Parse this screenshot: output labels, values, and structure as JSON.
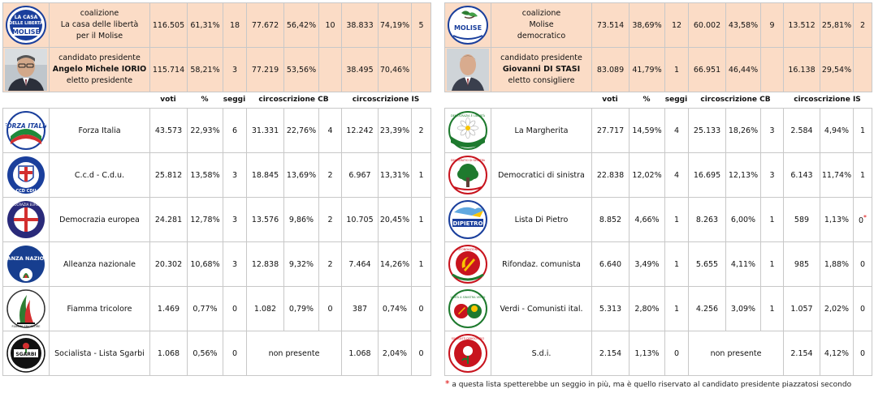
{
  "left": {
    "coalition": {
      "lines": [
        "coalizione",
        "La casa delle libertà",
        "per il Molise"
      ],
      "logo_text": [
        "LA CASA",
        "DELLE LIBERTÀ",
        "MOLISE"
      ],
      "values": [
        "116.505",
        "61,31%",
        "18",
        "77.672",
        "56,42%",
        "10",
        "38.833",
        "74,19%",
        "5"
      ]
    },
    "candidate": {
      "lines": [
        "candidato presidente",
        "Angelo Michele IORIO",
        "eletto presidente"
      ],
      "values": [
        "115.714",
        "58,21%",
        "3",
        "77.219",
        "53,56%",
        "",
        "38.495",
        "70,46%",
        ""
      ]
    },
    "headers": [
      "voti",
      "%",
      "seggi",
      "circoscrizione CB",
      "circoscrizione IS"
    ],
    "parties": [
      {
        "name": "Forza Italia",
        "logo_text": "FORZA ITALIA",
        "values": [
          "43.573",
          "22,93%",
          "6",
          "31.331",
          "22,76%",
          "4",
          "12.242",
          "23,39%",
          "2"
        ]
      },
      {
        "name": "C.c.d - C.d.u.",
        "logo_text": "CCD CDU",
        "values": [
          "25.812",
          "13,58%",
          "3",
          "18.845",
          "13,69%",
          "2",
          "6.967",
          "13,31%",
          "1"
        ]
      },
      {
        "name": "Democrazia europea",
        "logo_text": "DEMOCRAZIA EUROPEA",
        "values": [
          "24.281",
          "12,78%",
          "3",
          "13.576",
          "9,86%",
          "2",
          "10.705",
          "20,45%",
          "1"
        ]
      },
      {
        "name": "Alleanza nazionale",
        "logo_text": "ALLEANZA NAZIONALE",
        "values": [
          "20.302",
          "10,68%",
          "3",
          "12.838",
          "9,32%",
          "2",
          "7.464",
          "14,26%",
          "1"
        ]
      },
      {
        "name": "Fiamma tricolore",
        "logo_text": "FIAMMA TRICOLORE",
        "values": [
          "1.469",
          "0,77%",
          "0",
          "1.082",
          "0,79%",
          "0",
          "387",
          "0,74%",
          "0"
        ]
      },
      {
        "name": "Socialista - Lista Sgarbi",
        "logo_text": "SGARBI",
        "values": [
          "1.068",
          "0,56%",
          "0",
          "non presente",
          "1.068",
          "2,04%",
          "0"
        ]
      }
    ]
  },
  "right": {
    "coalition": {
      "lines": [
        "coalizione",
        "Molise",
        "democratico"
      ],
      "logo_text": "MOLISE",
      "values": [
        "73.514",
        "38,69%",
        "12",
        "60.002",
        "43,58%",
        "9",
        "13.512",
        "25,81%",
        "2"
      ]
    },
    "candidate": {
      "lines": [
        "candidato presidente",
        "Giovanni DI STASI",
        "eletto consigliere"
      ],
      "values": [
        "83.089",
        "41,79%",
        "1",
        "66.951",
        "46,44%",
        "",
        "16.138",
        "29,54%",
        ""
      ]
    },
    "headers": [
      "voti",
      "%",
      "seggi",
      "circoscrizione CB",
      "circoscrizione IS"
    ],
    "parties": [
      {
        "name": "La Margherita",
        "logo_text": "DEMOCRAZIA È LIBERTÀ",
        "values": [
          "27.717",
          "14,59%",
          "4",
          "25.133",
          "18,26%",
          "3",
          "2.584",
          "4,94%",
          "1"
        ]
      },
      {
        "name": "Democratici di sinistra",
        "logo_text": "DEMOCRATICI DI SINISTRA",
        "values": [
          "22.838",
          "12,02%",
          "4",
          "16.695",
          "12,13%",
          "3",
          "6.143",
          "11,74%",
          "1"
        ]
      },
      {
        "name": "Lista Di Pietro",
        "logo_text": "DIPIETRO",
        "values": [
          "8.852",
          "4,66%",
          "1",
          "8.263",
          "6,00%",
          "1",
          "589",
          "1,13%",
          "0"
        ]
      },
      {
        "name": "Rifondaz. comunista",
        "logo_text": "RIFONDAZIONE",
        "values": [
          "6.640",
          "3,49%",
          "1",
          "5.655",
          "4,11%",
          "1",
          "985",
          "1,88%",
          "0"
        ]
      },
      {
        "name": "Verdi - Comunisti ital.",
        "logo_text": "UNITÀ A SINISTRA VERDI",
        "values": [
          "5.313",
          "2,80%",
          "1",
          "4.256",
          "3,09%",
          "1",
          "1.057",
          "2,02%",
          "0"
        ]
      },
      {
        "name": "S.d.i.",
        "logo_text": "SOCIALISTI DEMOCRATICI",
        "values": [
          "2.154",
          "1,13%",
          "0",
          "non presente",
          "2.154",
          "4,12%",
          "0"
        ]
      }
    ]
  },
  "asterisk": "*",
  "footnote": "a questa lista spetterebbe un seggio in più, ma è quello riservato al candidato presidente piazzatosi secondo",
  "colors": {
    "peach": "#fbdcc6",
    "border": "#c8c8c8",
    "fi_blue": "#1a3f9c",
    "ds_green": "#1e7a2e",
    "an_blue": "#173e8f",
    "rc_red": "#c8141e"
  }
}
